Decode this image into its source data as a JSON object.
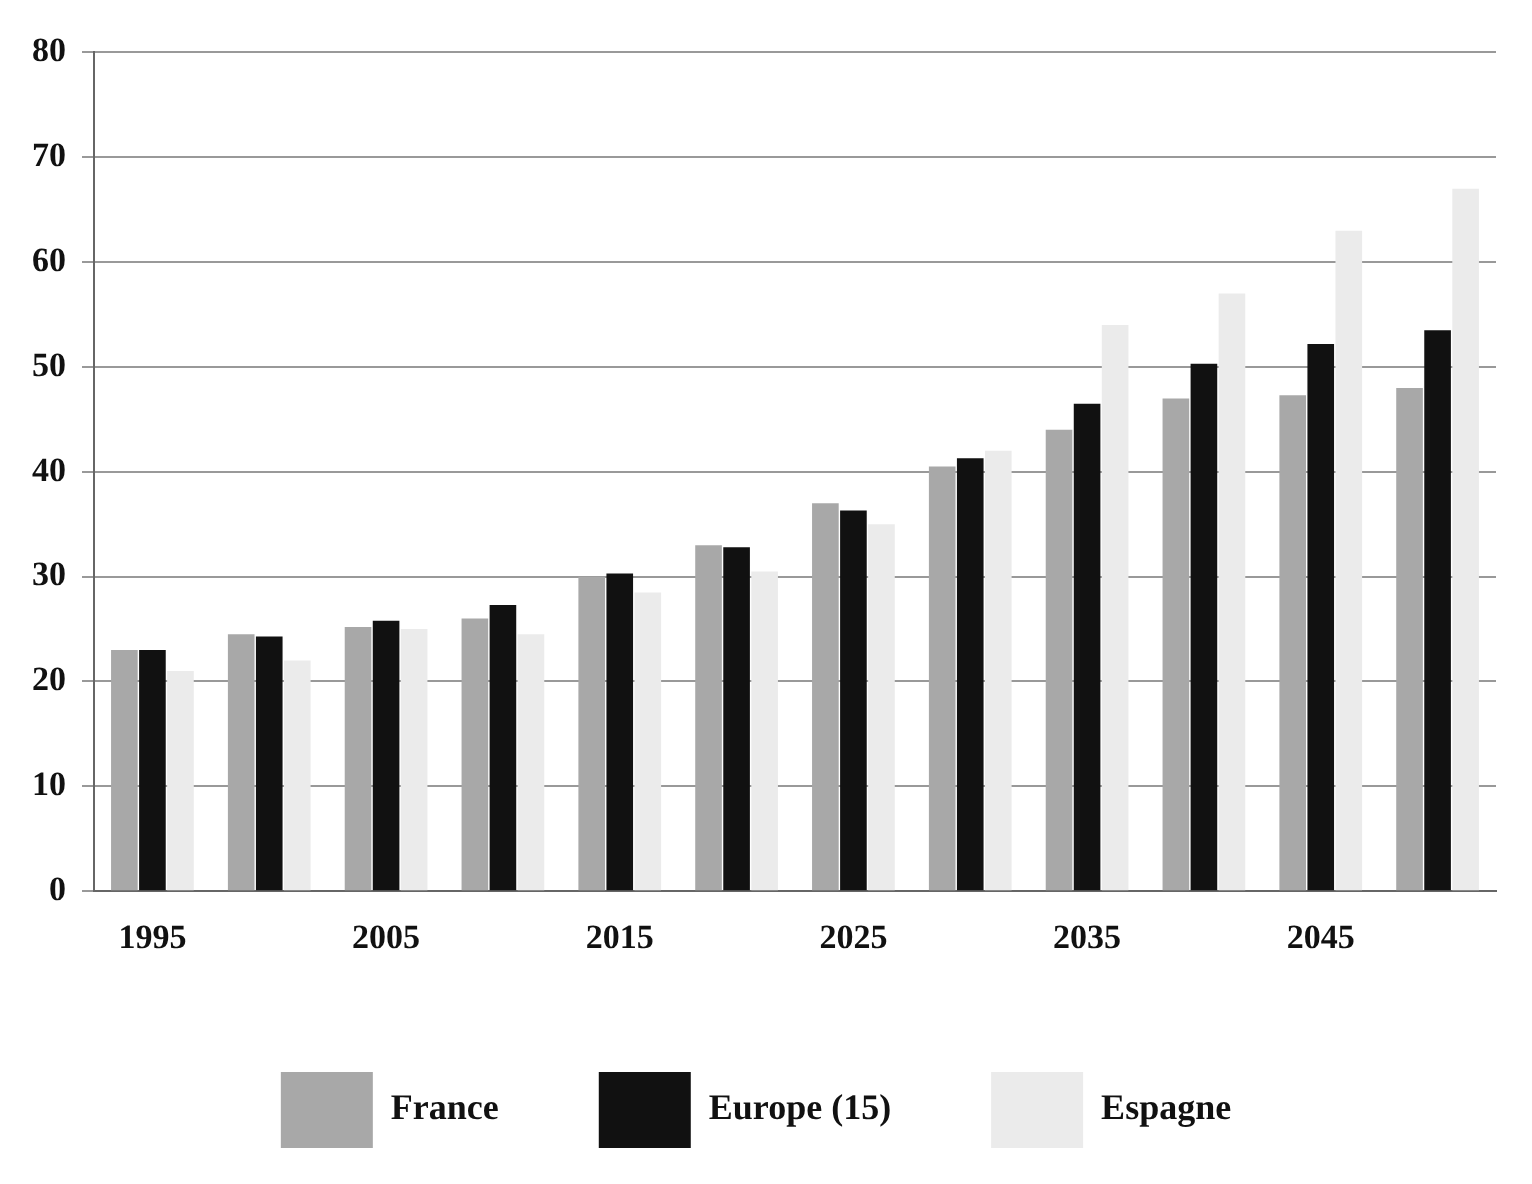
{
  "chart_data": {
    "type": "bar",
    "categories": [
      "1995",
      null,
      "2005",
      null,
      "2015",
      null,
      "2025",
      null,
      "2035",
      null,
      "2045",
      null
    ],
    "series": [
      {
        "name": "France",
        "color": "#a8a8a8",
        "values": [
          23,
          24.5,
          25.2,
          26,
          30,
          33,
          37,
          40.5,
          44,
          47,
          47.3,
          48
        ]
      },
      {
        "name": "Europe (15)",
        "color": "#111111",
        "values": [
          23,
          24.3,
          25.8,
          27.3,
          30.3,
          32.8,
          36.3,
          41.3,
          46.5,
          50.3,
          52.2,
          53.5
        ]
      },
      {
        "name": "Espagne",
        "color": "#ebebeb",
        "values": [
          21,
          22,
          25,
          24.5,
          28.5,
          30.5,
          35,
          42,
          54,
          57,
          63,
          67
        ]
      }
    ],
    "ylim": [
      0,
      80
    ],
    "yticks": [
      0,
      10,
      20,
      30,
      40,
      50,
      60,
      70,
      80
    ],
    "grid": "y",
    "legend": "bottom"
  }
}
